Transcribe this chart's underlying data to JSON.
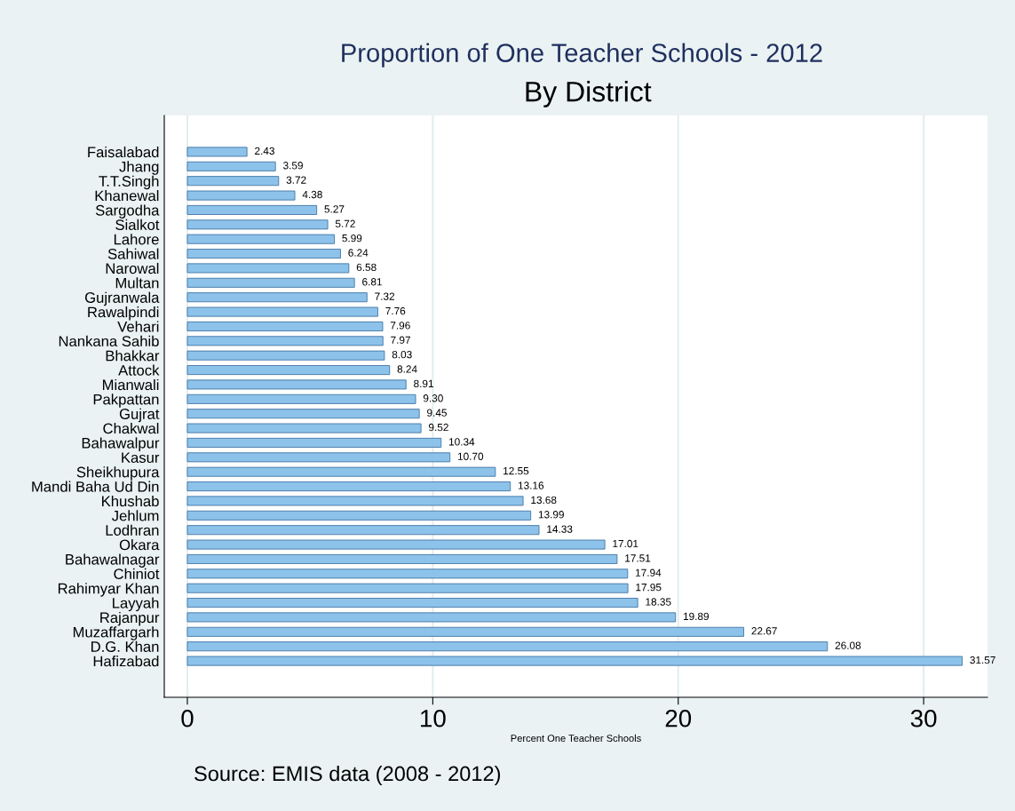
{
  "chart_data": {
    "type": "bar",
    "orientation": "horizontal",
    "title": "Proportion of One Teacher Schools - 2012",
    "subtitle": "By District",
    "xlabel": "Percent One Teacher Schools",
    "annotations": [
      "Source: EMIS data (2008 - 2012)"
    ],
    "categories": [
      "Faisalabad",
      "Jhang",
      "T.T.Singh",
      "Khanewal",
      "Sargodha",
      "Sialkot",
      "Lahore",
      "Sahiwal",
      "Narowal",
      "Multan",
      "Gujranwala",
      "Rawalpindi",
      "Vehari",
      "Nankana Sahib",
      "Bhakkar",
      "Attock",
      "Mianwali",
      "Pakpattan",
      "Gujrat",
      "Chakwal",
      "Bahawalpur",
      "Kasur",
      "Sheikhupura",
      "Mandi Baha Ud Din",
      "Khushab",
      "Jehlum",
      "Lodhran",
      "Okara",
      "Bahawalnagar",
      "Chiniot",
      "Rahimyar Khan",
      "Layyah",
      "Rajanpur",
      "Muzaffargarh",
      "D.G. Khan",
      "Hafizabad"
    ],
    "values": [
      2.43,
      3.59,
      3.72,
      4.38,
      5.27,
      5.72,
      5.99,
      6.24,
      6.58,
      6.81,
      7.32,
      7.76,
      7.96,
      7.97,
      8.03,
      8.24,
      8.91,
      9.3,
      9.45,
      9.52,
      10.34,
      10.7,
      12.55,
      13.16,
      13.68,
      13.99,
      14.33,
      17.01,
      17.51,
      17.94,
      17.95,
      18.35,
      19.89,
      22.67,
      26.08,
      31.57
    ],
    "value_labels": [
      "2.43",
      "3.59",
      "3.72",
      "4.38",
      "5.27",
      "5.72",
      "5.99",
      "6.24",
      "6.58",
      "6.81",
      "7.32",
      "7.76",
      "7.96",
      "7.97",
      "8.03",
      "8.24",
      "8.91",
      "9.30",
      "9.45",
      "9.52",
      "10.34",
      "10.70",
      "12.55",
      "13.16",
      "13.68",
      "13.99",
      "14.33",
      "17.01",
      "17.51",
      "17.94",
      "17.95",
      "18.35",
      "19.89",
      "22.67",
      "26.08",
      "31.57"
    ],
    "color": "#8dc3ea",
    "xlim": [
      -0.94,
      32.6
    ],
    "xticks": [
      0,
      10,
      20,
      30
    ],
    "grid": "x",
    "legend": false
  }
}
